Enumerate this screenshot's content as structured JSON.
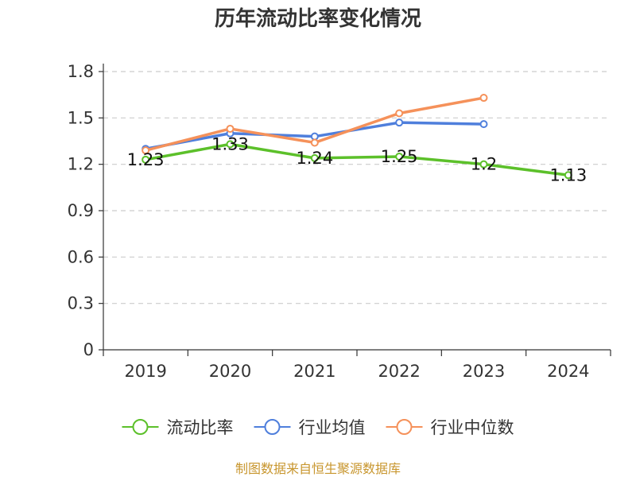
{
  "chart_data": {
    "type": "line",
    "title": "历年流动比率变化情况",
    "categories": [
      "2019",
      "2020",
      "2021",
      "2022",
      "2023",
      "2024"
    ],
    "y_ticks": [
      "0",
      "0.3",
      "0.6",
      "0.9",
      "1.2",
      "1.5",
      "1.8"
    ],
    "ylim": [
      0,
      1.8
    ],
    "grid": true,
    "legend_position": "bottom",
    "series": [
      {
        "name": "流动比率",
        "color": "#5cc02a",
        "values": [
          1.23,
          1.33,
          1.24,
          1.25,
          1.2,
          1.13
        ],
        "labels": [
          "1.23",
          "1.33",
          "1.24",
          "1.25",
          "1.2",
          "1.13"
        ]
      },
      {
        "name": "行业均值",
        "color": "#4f7fdc",
        "values": [
          1.3,
          1.4,
          1.38,
          1.47,
          1.46,
          null
        ]
      },
      {
        "name": "行业中位数",
        "color": "#f5915a",
        "values": [
          1.29,
          1.43,
          1.34,
          1.53,
          1.63,
          null
        ]
      }
    ]
  },
  "source": "制图数据来自恒生聚源数据库"
}
